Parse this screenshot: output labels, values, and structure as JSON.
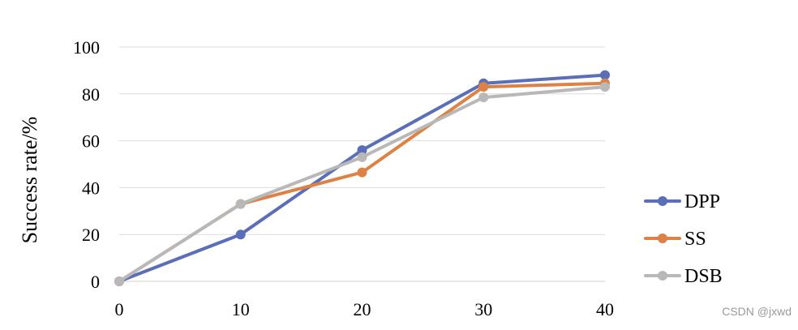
{
  "chart_data": {
    "type": "line",
    "x": [
      0,
      10,
      20,
      30,
      40
    ],
    "ylabel": "Success rate/%",
    "xlabel": "",
    "title": "",
    "xlim": [
      0,
      40
    ],
    "ylim": [
      0,
      100
    ],
    "x_ticks": [
      "0",
      "10",
      "20",
      "30",
      "40"
    ],
    "y_ticks": [
      "0",
      "20",
      "40",
      "60",
      "80",
      "100"
    ],
    "grid": "horizontal",
    "legend_position": "right",
    "series": [
      {
        "name": "DPP",
        "color": "#5b6fb8",
        "values": [
          0,
          20,
          56,
          84.5,
          88
        ]
      },
      {
        "name": "SS",
        "color": "#dd8244",
        "values": [
          0,
          33,
          46.5,
          83,
          84.5
        ]
      },
      {
        "name": "DSB",
        "color": "#b8b8b8",
        "values": [
          0,
          33,
          53,
          78.5,
          83
        ]
      }
    ]
  },
  "watermark": "CSDN @jxwd"
}
